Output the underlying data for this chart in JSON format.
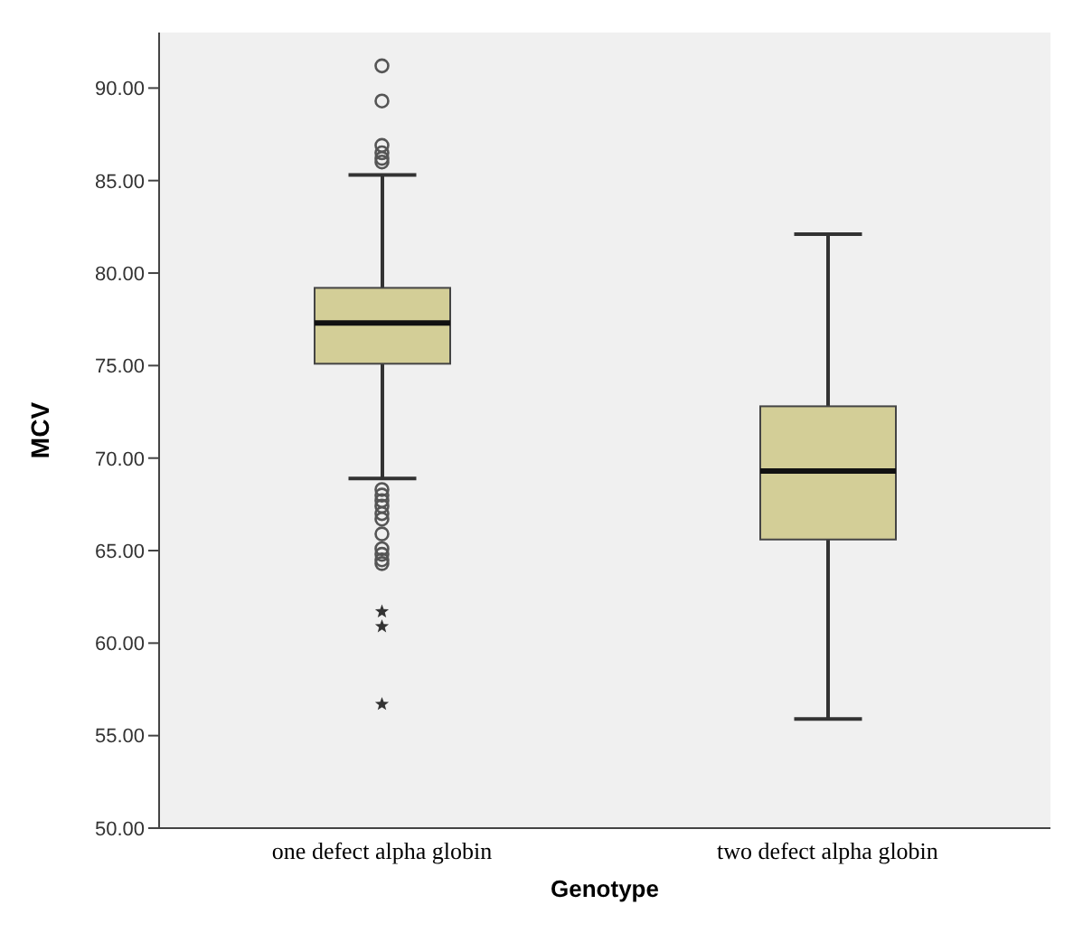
{
  "chart_data": {
    "type": "box",
    "xlabel": "Genotype",
    "ylabel": "MCV",
    "categories": [
      "one defect alpha globin",
      "two defect alpha globin"
    ],
    "color": "#d3ce97",
    "boxes": [
      {
        "low": 68.9,
        "q1": 75.1,
        "median": 77.3,
        "q3": 79.2,
        "high": 85.3,
        "outliers": [
          91.2,
          89.3,
          86.9,
          86.5,
          86.2,
          86.0,
          68.3,
          68.0,
          67.7,
          67.4,
          67.0,
          66.7,
          65.9,
          65.1,
          64.8,
          64.5,
          64.3,
          61.7,
          60.9,
          56.7
        ]
      },
      {
        "low": 55.9,
        "q1": 65.6,
        "median": 69.3,
        "q3": 72.8,
        "high": 82.1
      }
    ],
    "ylim": [
      50,
      93
    ],
    "yticks": [
      {
        "value": 50,
        "label": "50.00"
      },
      {
        "value": 55,
        "label": "55.00"
      },
      {
        "value": 60,
        "label": "60.00"
      },
      {
        "value": 65,
        "label": "65.00"
      },
      {
        "value": 70,
        "label": "70.00"
      },
      {
        "value": 75,
        "label": "75.00"
      },
      {
        "value": 80,
        "label": "80.00"
      },
      {
        "value": 85,
        "label": "85.00"
      },
      {
        "value": 90,
        "label": "90.00"
      }
    ],
    "grid": false,
    "legend": false
  }
}
